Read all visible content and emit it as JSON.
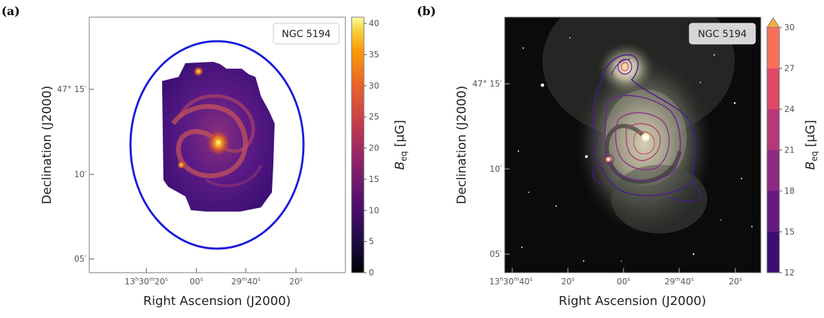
{
  "figure": {
    "panels": [
      {
        "letter": "(a)",
        "legend": "NGC 5194",
        "xlabel": "Right Ascension (J2000)",
        "ylabel": "Declination (J2000)",
        "x_ticks": [
          {
            "h": "13",
            "hs": "h",
            "m": "30",
            "ms": "m",
            "s": "20",
            "ss": "s"
          },
          {
            "s": "00",
            "ss": "s"
          },
          {
            "m": "29",
            "ms": "m",
            "s": "40",
            "ss": "s"
          },
          {
            "s": "20",
            "ss": "s"
          }
        ],
        "y_ticks": [
          "47° 15′",
          "10′",
          "05′"
        ],
        "colorbar": {
          "label": "B",
          "label_sub": "eq",
          "label_unit": "[μG]",
          "ticks": [
            "0",
            "5",
            "10",
            "15",
            "20",
            "25",
            "30",
            "35",
            "40"
          ],
          "range": [
            0,
            41
          ]
        }
      },
      {
        "letter": "(b)",
        "legend": "NGC 5194",
        "xlabel": "Right Ascension (J2000)",
        "ylabel": "Declination (J2000)",
        "x_ticks": [
          {
            "h": "13",
            "hs": "h",
            "m": "30",
            "ms": "m",
            "s": "40",
            "ss": "s"
          },
          {
            "s": "20",
            "ss": "s"
          },
          {
            "s": "00",
            "ss": "s"
          },
          {
            "m": "29",
            "ms": "m",
            "s": "40",
            "ss": "s"
          },
          {
            "s": "20",
            "ss": "s"
          }
        ],
        "y_ticks": [
          "47° 15′",
          "10′",
          "05′"
        ],
        "colorbar": {
          "label": "B",
          "label_sub": "eq",
          "label_unit": "[μG]",
          "ticks": [
            "12",
            "15",
            "18",
            "21",
            "24",
            "27",
            "30"
          ],
          "levels": [
            12,
            15,
            18,
            21,
            24,
            27,
            30
          ],
          "extend": "max"
        }
      }
    ]
  },
  "colors": {
    "ellipse": "#1a1adc",
    "inferno_low": "#000004",
    "inferno_mid": "#b63679",
    "inferno_high": "#fcffa4",
    "sky": "#0b0b0b"
  }
}
